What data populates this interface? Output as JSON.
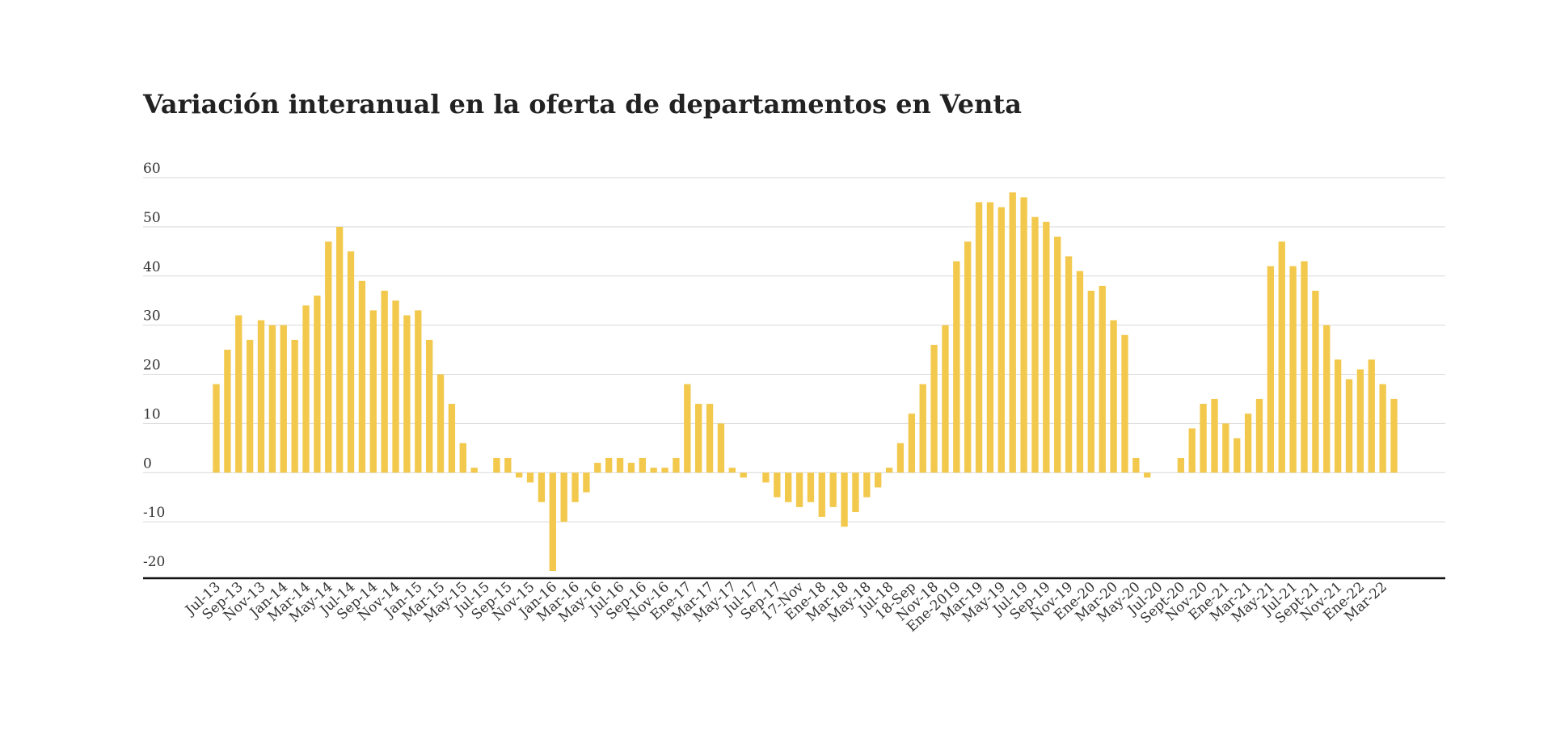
{
  "chart_data": {
    "type": "bar",
    "title": "Variación interanual en la oferta de departamentos en Venta",
    "xlabel": "",
    "ylabel": "",
    "ylim": [
      -20,
      60
    ],
    "yticks": [
      60,
      50,
      40,
      30,
      20,
      10,
      0,
      -10,
      -20
    ],
    "grid": true,
    "bar_color": "#F2C94C",
    "x_tick_labels": [
      "Jul-13",
      "Sep-13",
      "Nov-13",
      "Jan-14",
      "Mar-14",
      "May-14",
      "Jul-14",
      "Sep-14",
      "Nov-14",
      "Jan-15",
      "Mar-15",
      "May-15",
      "Jul-15",
      "Sep-15",
      "Nov-15",
      "Jan-16",
      "Mar-16",
      "May-16",
      "Jul-16",
      "Sep-16",
      "Nov-16",
      "Ene-17",
      "Mar-17",
      "May-17",
      "Jul-17",
      "Sep-17",
      "17-Nov",
      "Ene-18",
      "Mar-18",
      "May-18",
      "Jul-18",
      "18-Sep",
      "Nov-18",
      "Ene-2019",
      "Mar-19",
      "May-19",
      "Jul-19",
      "Sep-19",
      "Nov-19",
      "Ene-20",
      "Mar-20",
      "May-20",
      "Jul-20",
      "Sept-20",
      "Nov-20",
      "Ene-21",
      "Mar-21",
      "May-21",
      "Jul-21",
      "Sept-21",
      "Nov-21",
      "Ene-22",
      "Mar-22"
    ],
    "values": [
      18,
      25,
      32,
      27,
      31,
      30,
      30,
      27,
      34,
      36,
      47,
      50,
      45,
      39,
      33,
      37,
      35,
      32,
      33,
      27,
      20,
      14,
      6,
      1,
      0,
      3,
      3,
      -1,
      -2,
      -6,
      -20,
      -10,
      -6,
      -4,
      2,
      3,
      3,
      2,
      3,
      1,
      1,
      3,
      18,
      14,
      14,
      10,
      1,
      -1,
      0,
      -2,
      -5,
      -6,
      -7,
      -6,
      -9,
      -7,
      -11,
      -8,
      -5,
      -3,
      1,
      6,
      12,
      18,
      26,
      30,
      43,
      47,
      55,
      55,
      54,
      57,
      56,
      52,
      51,
      48,
      44,
      41,
      37,
      38,
      31,
      28,
      3,
      -1,
      0,
      0,
      3,
      9,
      14,
      15,
      10,
      7,
      12,
      15,
      42,
      47,
      42,
      43,
      37,
      30,
      23,
      19,
      21,
      23,
      18,
      15
    ]
  }
}
